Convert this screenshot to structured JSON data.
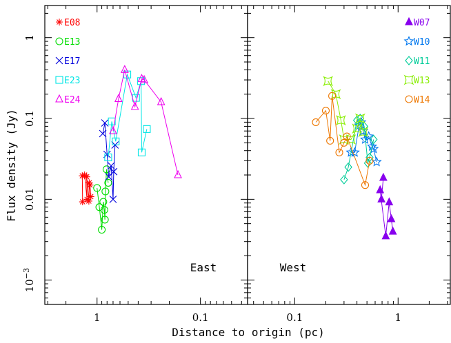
{
  "chart_data": {
    "type": "scatter",
    "ylabel": "Flux density (Jy)",
    "xlabel": "Distance to origin (pc)",
    "yscale": "log",
    "ylim": [
      0.0005,
      2.5
    ],
    "y_ticks": [
      {
        "value": 1,
        "label": "1"
      },
      {
        "value": 0.1,
        "label": "0.1"
      },
      {
        "value": 0.01,
        "label": "0.01"
      },
      {
        "value": 0.001,
        "label": "10",
        "exp": "−3"
      }
    ],
    "panels": [
      {
        "name": "East",
        "label": "East",
        "xscale": "log",
        "x_reversed": true,
        "xlim": [
          3.2,
          0.035
        ],
        "x_ticks": [
          {
            "value": 1,
            "label": "1"
          },
          {
            "value": 0.1,
            "label": "0.1"
          }
        ],
        "series": [
          {
            "name": "E08",
            "color": "#ff0000",
            "marker": "star",
            "points": [
              [
                1.38,
                0.0093
              ],
              [
                1.39,
                0.0195
              ],
              [
                1.32,
                0.02
              ],
              [
                1.25,
                0.01
              ],
              [
                1.26,
                0.019
              ],
              [
                1.2,
                0.0095
              ],
              [
                1.19,
                0.016
              ],
              [
                1.15,
                0.0108
              ],
              [
                1.17,
                0.015
              ]
            ]
          },
          {
            "name": "E13",
            "color": "#00dd00",
            "marker": "circle",
            "points": [
              [
                1.0,
                0.0138
              ],
              [
                0.95,
                0.008
              ],
              [
                0.9,
                0.0042
              ],
              [
                0.87,
                0.0093
              ],
              [
                0.85,
                0.0074
              ],
              [
                0.84,
                0.0056
              ],
              [
                0.83,
                0.0125
              ],
              [
                0.81,
                0.0235
              ],
              [
                0.78,
                0.016
              ]
            ]
          },
          {
            "name": "E17",
            "color": "#0000dd",
            "marker": "x",
            "points": [
              [
                0.88,
                0.065
              ],
              [
                0.84,
                0.088
              ],
              [
                0.8,
                0.036
              ],
              [
                0.77,
                0.019
              ],
              [
                0.73,
                0.026
              ],
              [
                0.7,
                0.01
              ],
              [
                0.69,
                0.022
              ],
              [
                0.67,
                0.047
              ]
            ]
          },
          {
            "name": "E23",
            "color": "#00e5e5",
            "marker": "square",
            "points": [
              [
                0.78,
                0.033
              ],
              [
                0.72,
                0.092
              ],
              [
                0.66,
                0.052
              ],
              [
                0.51,
                0.35
              ],
              [
                0.42,
                0.18
              ],
              [
                0.375,
                0.29
              ],
              [
                0.37,
                0.038
              ],
              [
                0.33,
                0.074
              ]
            ]
          },
          {
            "name": "E24",
            "color": "#ee00ee",
            "marker": "triangle",
            "points": [
              [
                0.7,
                0.07
              ],
              [
                0.62,
                0.175
              ],
              [
                0.54,
                0.4
              ],
              [
                0.43,
                0.14
              ],
              [
                0.37,
                0.31
              ],
              [
                0.35,
                0.3
              ],
              [
                0.24,
                0.16
              ],
              [
                0.165,
                0.02
              ]
            ]
          }
        ]
      },
      {
        "name": "West",
        "label": "West",
        "xscale": "log",
        "x_reversed": false,
        "xlim": [
          0.035,
          3.2
        ],
        "x_ticks": [
          {
            "value": 0.1,
            "label": "0.1"
          },
          {
            "value": 1,
            "label": "1"
          }
        ],
        "series": [
          {
            "name": "W07",
            "color": "#8800ee",
            "marker": "filled-triangle",
            "points": [
              [
                0.72,
                0.0185
              ],
              [
                0.69,
                0.01
              ],
              [
                0.67,
                0.013
              ],
              [
                0.76,
                0.0035
              ],
              [
                0.82,
                0.0092
              ],
              [
                0.86,
                0.0057
              ],
              [
                0.89,
                0.004
              ]
            ]
          },
          {
            "name": "W10",
            "color": "#0077ee",
            "marker": "star5",
            "points": [
              [
                0.35,
                0.038
              ],
              [
                0.38,
                0.038
              ],
              [
                0.42,
                0.082
              ],
              [
                0.44,
                0.09
              ],
              [
                0.46,
                0.07
              ],
              [
                0.48,
                0.055
              ],
              [
                0.52,
                0.06
              ],
              [
                0.56,
                0.045
              ],
              [
                0.58,
                0.042
              ],
              [
                0.62,
                0.029
              ]
            ]
          },
          {
            "name": "W11",
            "color": "#00cc99",
            "marker": "diamond",
            "points": [
              [
                0.3,
                0.0175
              ],
              [
                0.33,
                0.025
              ],
              [
                0.4,
                0.095
              ],
              [
                0.43,
                0.1
              ],
              [
                0.47,
                0.08
              ],
              [
                0.51,
                0.028
              ],
              [
                0.53,
                0.033
              ],
              [
                0.58,
                0.055
              ]
            ]
          },
          {
            "name": "W13",
            "color": "#88ee00",
            "marker": "square-concave",
            "points": [
              [
                0.21,
                0.29
              ],
              [
                0.25,
                0.2
              ],
              [
                0.28,
                0.095
              ],
              [
                0.3,
                0.055
              ],
              [
                0.35,
                0.055
              ],
              [
                0.4,
                0.075
              ],
              [
                0.43,
                0.1
              ],
              [
                0.46,
                0.068
              ]
            ]
          },
          {
            "name": "W14",
            "color": "#ee7700",
            "marker": "circle",
            "points": [
              [
                0.16,
                0.09
              ],
              [
                0.2,
                0.125
              ],
              [
                0.22,
                0.053
              ],
              [
                0.23,
                0.19
              ],
              [
                0.27,
                0.038
              ],
              [
                0.3,
                0.05
              ],
              [
                0.32,
                0.06
              ],
              [
                0.48,
                0.015
              ],
              [
                0.53,
                0.03
              ]
            ]
          }
        ]
      }
    ]
  }
}
